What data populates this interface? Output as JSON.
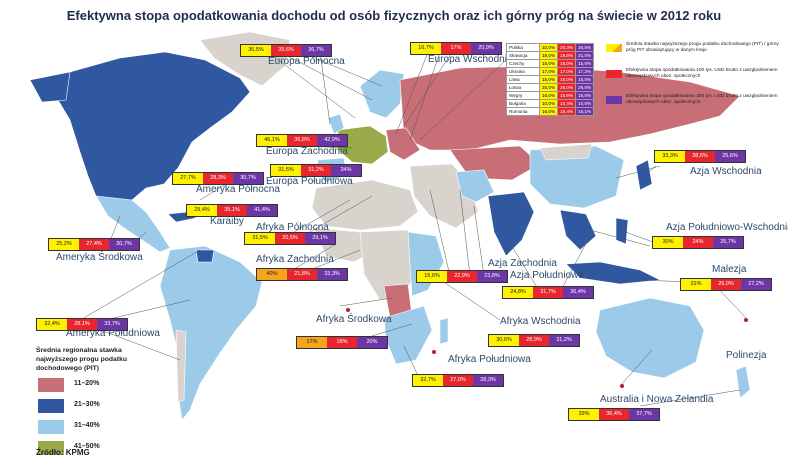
{
  "title": "Efektywna stopa opodatkowania dochodu od osób fizycznych oraz ich górny próg na świecie w 2012 roku",
  "colors": {
    "range_11_20": "#c86e77",
    "range_21_30": "#2f58a0",
    "range_31_40": "#9ccbe9",
    "range_41_50": "#9aaa4a",
    "no_data": "#d8d4cd",
    "water": "#ffffff",
    "yellow_box": "#fff200",
    "red_box": "#e8262d",
    "purple_box": "#6d36a6",
    "orange_box": "#f7a41d"
  },
  "regions": [
    {
      "name": "Europa Północna",
      "top": "36,5%",
      "mid": "39,6%",
      "third": "36,7%"
    },
    {
      "name": "Europa Wschodnia",
      "top": "16,7%",
      "mid": "17%",
      "third": "20,9%"
    },
    {
      "name": "Europa Zachodnia",
      "top": "46,1%",
      "mid": "36,8%",
      "third": "42,9%"
    },
    {
      "name": "Europa Południowa",
      "top": "31,5%",
      "mid": "31,2%",
      "third": "34%"
    },
    {
      "name": "Ameryka Północna",
      "top": "27,7%",
      "mid": "28,3%",
      "third": "30,7%"
    },
    {
      "name": "Karaiby",
      "top": "29,4%",
      "mid": "35,1%",
      "third": "41,4%"
    },
    {
      "name": "Afryka Północna",
      "top": "31,5%",
      "mid": "20,5%",
      "third": "29,1%"
    },
    {
      "name": "Ameryka Środkowa",
      "top": "25,2%",
      "mid": "27,4%",
      "third": "30,7%"
    },
    {
      "name": "Afryka Zachodnia",
      "top": "40%",
      "mid": "21,8%",
      "third": "33,3%"
    },
    {
      "name": "Ameryka Południowa",
      "top": "32,4%",
      "mid": "28,1%",
      "third": "33,7%"
    },
    {
      "name": "Afryka Środkowa",
      "top": "17%",
      "mid": "18%",
      "third": "20%"
    },
    {
      "name": "Afryka Południowa",
      "top": "32,7%",
      "mid": "27,0%",
      "third": "28,3%"
    },
    {
      "name": "Afryka Wschodnia",
      "top": "30,6%",
      "mid": "28,9%",
      "third": "31,2%"
    },
    {
      "name": "Azja Zachodnia",
      "top": "15,6%",
      "mid": "22,9%",
      "third": "23,8%"
    },
    {
      "name": "Azja Południowa",
      "top": "24,8%",
      "mid": "31,7%",
      "third": "36,4%"
    },
    {
      "name": "Azja Wschodnia",
      "top": "33,3%",
      "mid": "38,6%",
      "third": "25,6%"
    },
    {
      "name": "Azja Południowo-Wschodnia",
      "top": "30%",
      "mid": "24%",
      "third": "25,7%"
    },
    {
      "name": "Malezja",
      "top": "31%",
      "mid": "26,0%",
      "third": "27,2%"
    },
    {
      "name": "Polinezja",
      "top": "",
      "mid": "",
      "third": ""
    },
    {
      "name": "Australia i Nowa Zelandia",
      "top": "39%",
      "mid": "36,4%",
      "third": "37,7%"
    }
  ],
  "country_table": [
    {
      "country": "Polska",
      "a": "32,0%",
      "b": "20,3%",
      "c": "20,5%"
    },
    {
      "country": "Słowacja",
      "a": "19,0%",
      "b": "19,8%",
      "c": "21,0%"
    },
    {
      "country": "Czechy",
      "a": "15,0%",
      "b": "15,0%",
      "c": "15,0%"
    },
    {
      "country": "Ukraina",
      "a": "17,0%",
      "b": "17,0%",
      "c": "17,2%"
    },
    {
      "country": "Litwa",
      "a": "15,0%",
      "b": "15,0%",
      "c": "15,0%"
    },
    {
      "country": "Łotwa",
      "a": "25,0%",
      "b": "26,0%",
      "c": "26,0%"
    },
    {
      "country": "Węgry",
      "a": "16,0%",
      "b": "15,9%",
      "c": "16,0%"
    },
    {
      "country": "Bułgaria",
      "a": "10,0%",
      "b": "10,4%",
      "c": "10,0%"
    },
    {
      "country": "Rumunia",
      "a": "16,0%",
      "b": "16,4%",
      "c": "16,1%"
    }
  ],
  "legend_top": [
    {
      "color": "yellow",
      "text": "Średnia stawka najwyższego progu podatku dochodowego (PIT) / górny próg PIT obowiązujący w danym kraju"
    },
    {
      "color": "red",
      "text": "Efektywna stopa opodatkowania 100 tys. USD brutto z uwzględnieniem obowiązkowych ubez. społecznych"
    },
    {
      "color": "purple",
      "text": "Efektywna stopa opodatkowania 300 tys. USD brutto z uwzględnieniem obowiązkowych ubez. społecznych"
    }
  ],
  "legend_bottom": {
    "title": "Średnia regionalna stawka najwyższego progu podatku dochodowego (PIT)",
    "items": [
      {
        "label": "11–20%",
        "color": "#c86e77"
      },
      {
        "label": "21–30%",
        "color": "#2f58a0"
      },
      {
        "label": "31–40%",
        "color": "#9ccbe9"
      },
      {
        "label": "41–50%",
        "color": "#9aaa4a"
      }
    ]
  },
  "source": "Źródło: KPMG"
}
